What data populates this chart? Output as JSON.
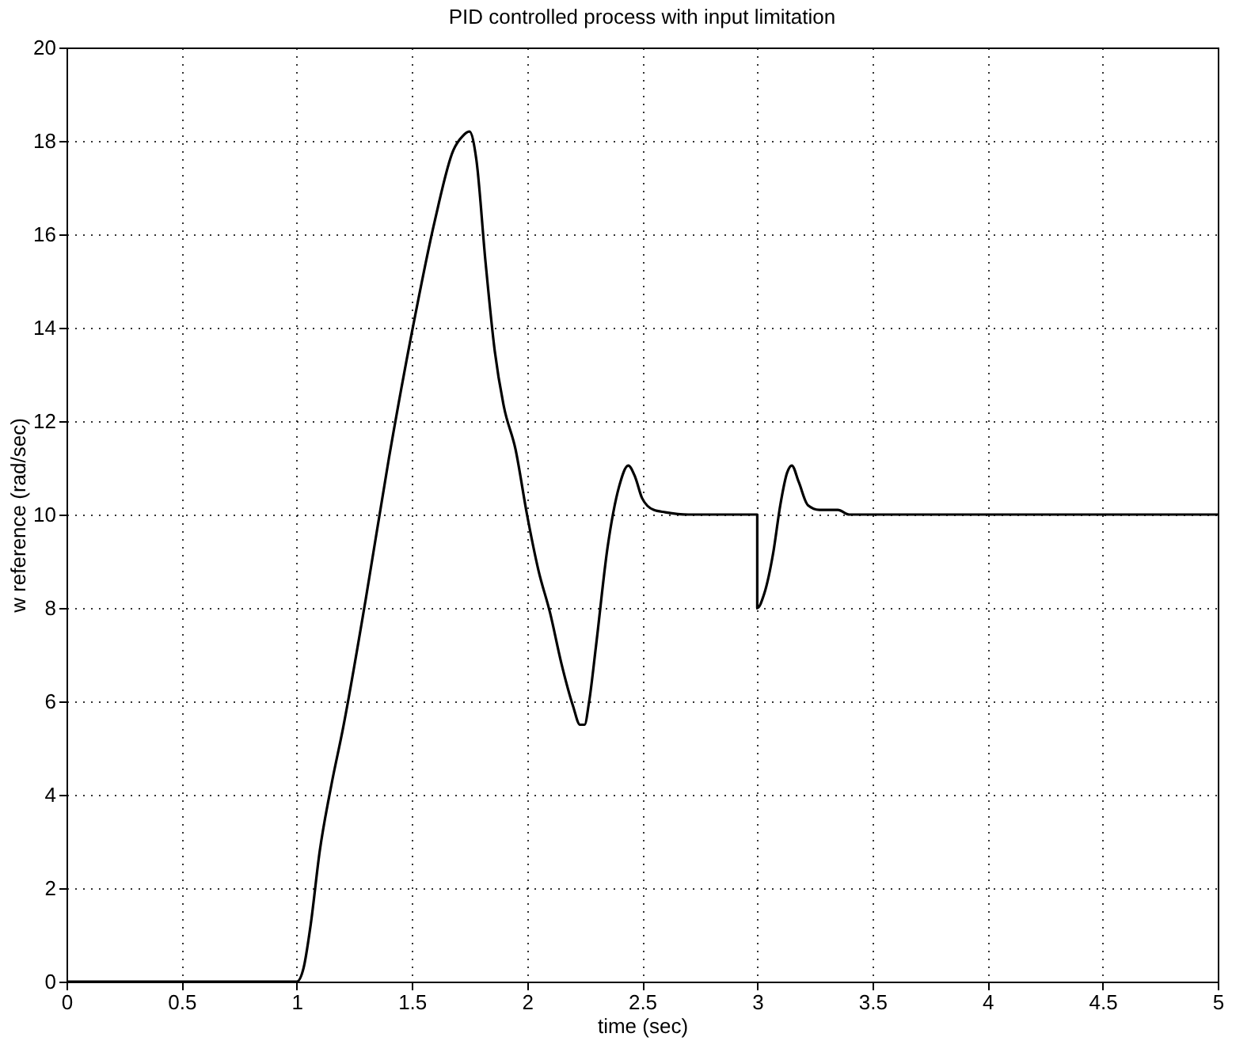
{
  "chart_data": {
    "type": "line",
    "title": "PID controlled process with input limitation",
    "xlabel": "time (sec)",
    "ylabel": "w reference (rad/sec)",
    "xlim": [
      0,
      5
    ],
    "ylim": [
      0,
      20
    ],
    "xticks": [
      0,
      0.5,
      1,
      1.5,
      2,
      2.5,
      3,
      3.5,
      4,
      4.5,
      5
    ],
    "yticks": [
      0,
      2,
      4,
      6,
      8,
      10,
      12,
      14,
      16,
      18,
      20
    ],
    "grid": true,
    "series": [
      {
        "color": "#000000",
        "x": [
          0,
          1,
          1.03,
          1.06,
          1.1,
          1.15,
          1.2,
          1.3,
          1.4,
          1.5,
          1.6,
          1.68,
          1.72,
          1.75,
          1.78,
          1.82,
          1.86,
          1.9,
          1.95,
          2,
          2.05,
          2.1,
          2.15,
          2.2,
          2.23,
          2.25,
          2.27,
          2.3,
          2.35,
          2.4,
          2.44,
          2.47,
          2.5,
          2.55,
          2.6,
          2.7,
          3,
          3,
          3.03,
          3.07,
          3.1,
          3.13,
          3.15,
          3.18,
          3.22,
          3.27,
          3.35,
          3.4,
          5
        ],
        "values": [
          0,
          0,
          0.3,
          1.2,
          2.8,
          4.2,
          5.4,
          8.2,
          11.2,
          13.9,
          16.3,
          17.8,
          18.1,
          18.2,
          17.6,
          15.4,
          13.5,
          12.3,
          11.4,
          10,
          8.8,
          7.9,
          6.8,
          5.9,
          5.5,
          5.5,
          6,
          7.2,
          9.3,
          10.6,
          11.05,
          10.8,
          10.35,
          10.1,
          10.05,
          10,
          10,
          8,
          8.3,
          9.2,
          10.2,
          10.9,
          11.05,
          10.7,
          10.2,
          10.1,
          10.1,
          10,
          10
        ]
      }
    ]
  }
}
